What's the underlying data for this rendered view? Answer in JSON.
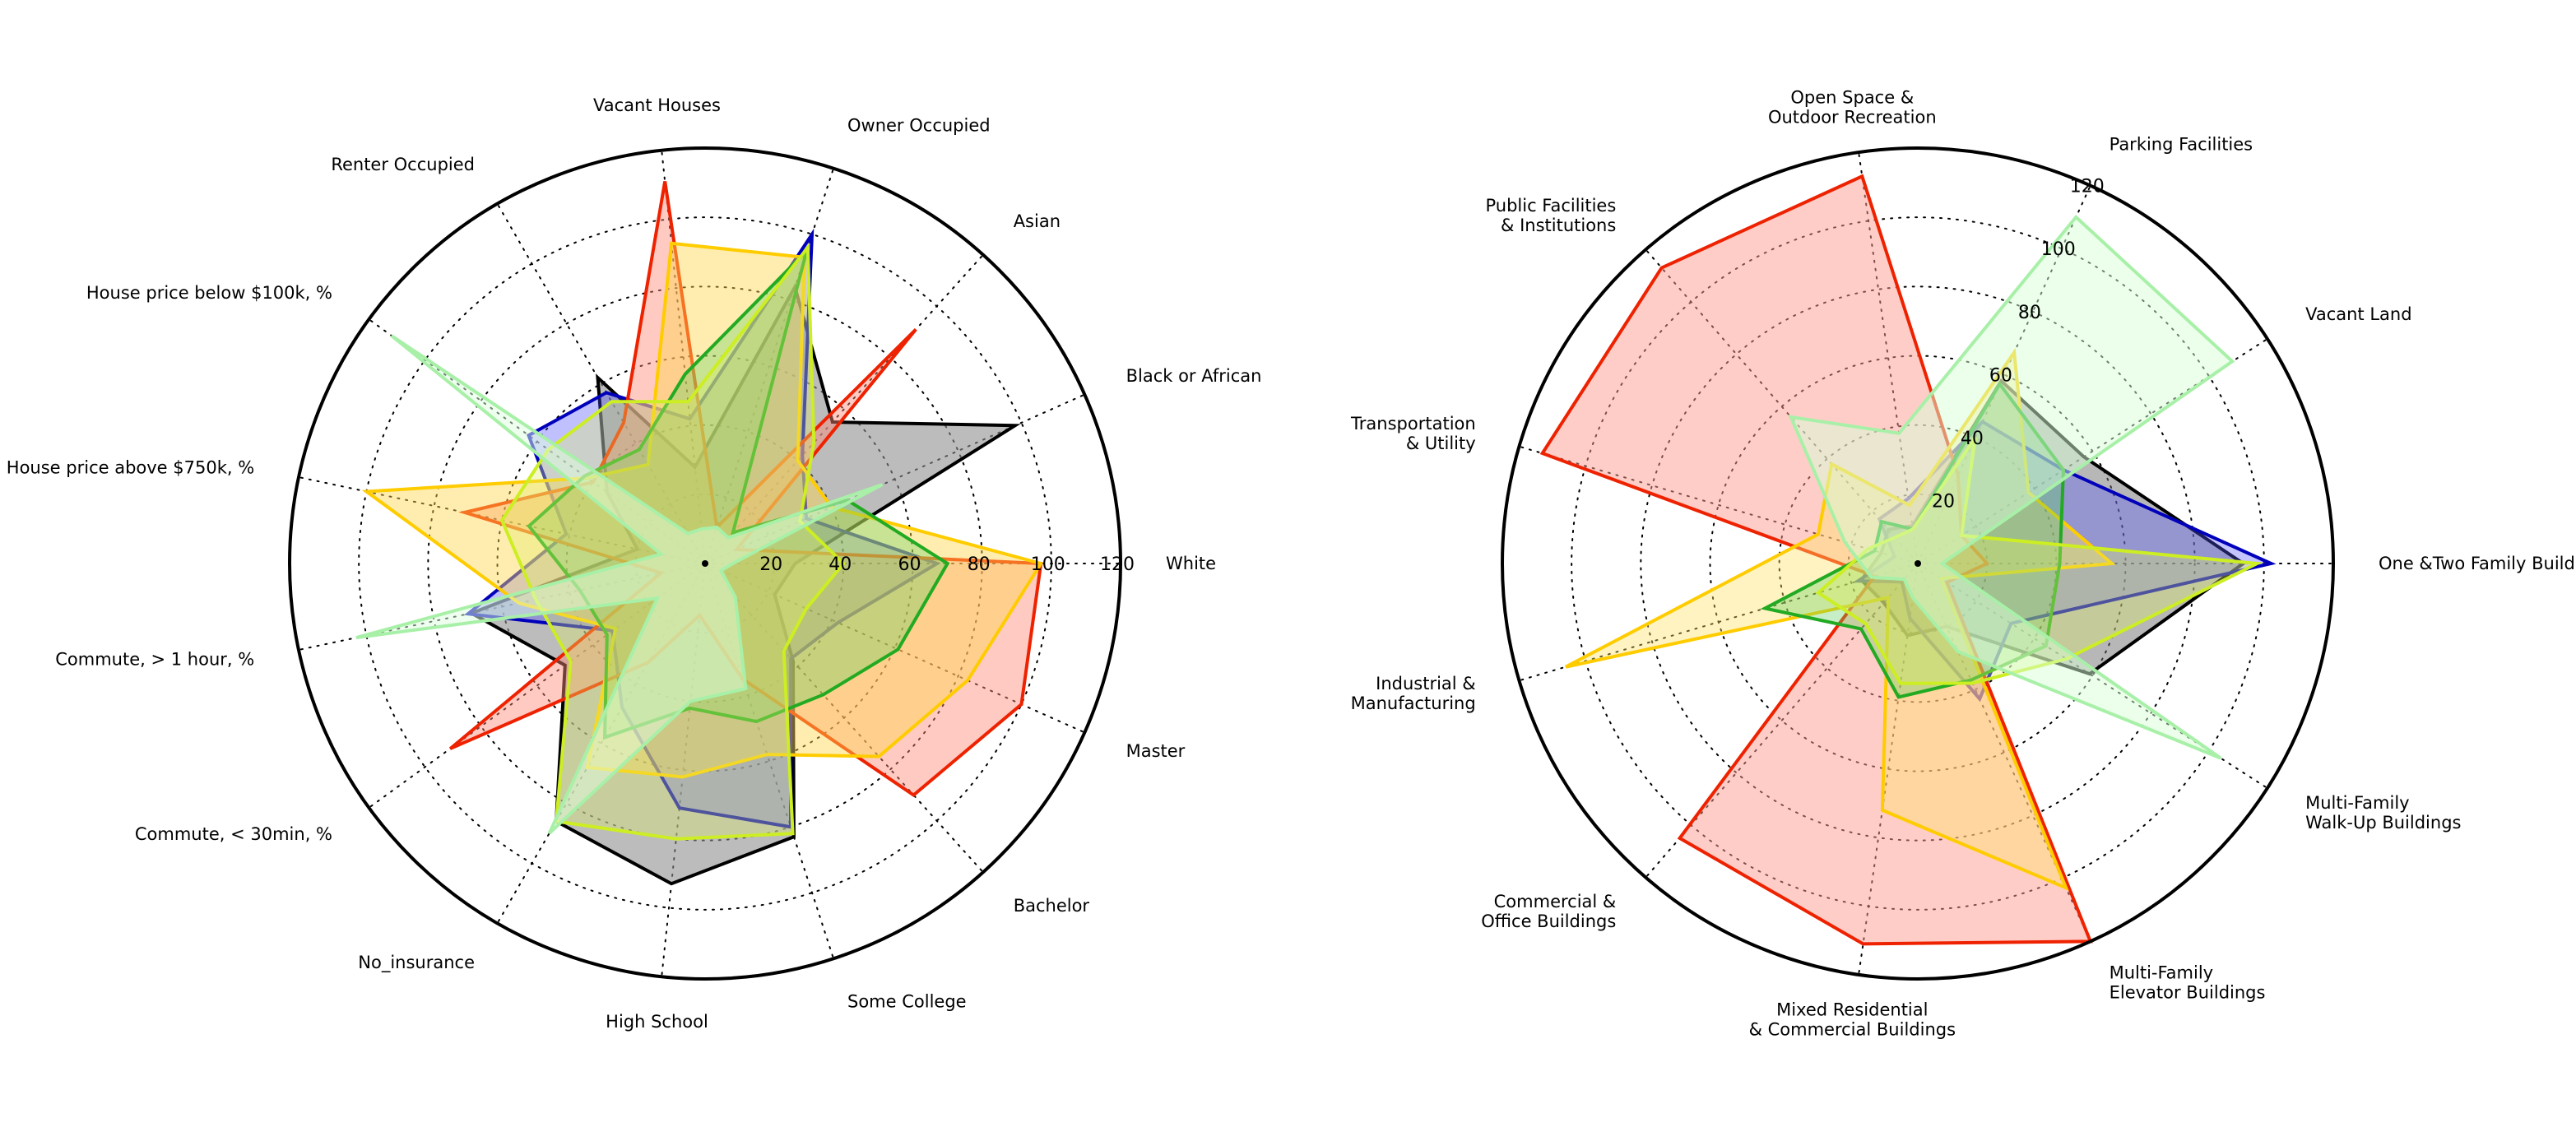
{
  "chart_data": [
    {
      "type": "radar",
      "rmax": 120,
      "rticks": [
        20,
        40,
        60,
        80,
        100,
        120
      ],
      "tick_label_axis": "White",
      "axes": [
        "White",
        "Black or African",
        "Asian",
        "Owner Occupied",
        "Vacant Houses",
        "Renter Occupied",
        "House price below $100k, %",
        "House price above $750k, %",
        "Commute, > 1 hour, %",
        "Commute, < 30min, %",
        "No_insurance",
        "High School",
        "Some College",
        "Bachelor",
        "Master"
      ],
      "series": [
        {
          "name": "black",
          "color": "#000000",
          "fill": "#909090",
          "fill_opacity": 0.6,
          "values": [
            26,
            98,
            55,
            84,
            28,
            62,
            35,
            20,
            69,
            50,
            86,
            93,
            83,
            38,
            22
          ]
        },
        {
          "name": "blue",
          "color": "#0000bb",
          "fill": "#4a4aff",
          "fill_opacity": 0.35,
          "values": [
            67,
            32,
            42,
            100,
            42,
            57,
            63,
            41,
            70,
            33,
            48,
            71,
            80,
            37,
            42
          ]
        },
        {
          "name": "red",
          "color": "#ee2200",
          "fill": "#ff8a78",
          "fill_opacity": 0.45,
          "values": [
            97,
            10,
            91,
            11,
            111,
            47,
            40,
            71,
            13,
            91,
            33,
            15,
            35,
            90,
            100
          ]
        },
        {
          "name": "yellow",
          "color": "#ffcc00",
          "fill": "#ffd84d",
          "fill_opacity": 0.45,
          "values": [
            97,
            40,
            40,
            93,
            93,
            33,
            42,
            100,
            55,
            32,
            68,
            62,
            58,
            75,
            83
          ]
        },
        {
          "name": "green",
          "color": "#22aa22",
          "fill": "#5fd05f",
          "fill_opacity": 0.35,
          "values": [
            70,
            45,
            12,
            95,
            55,
            38,
            43,
            52,
            37,
            35,
            58,
            42,
            48,
            51,
            61
          ]
        },
        {
          "name": "yellow-green",
          "color": "#ccee22",
          "fill": "#dfee66",
          "fill_opacity": 0.35,
          "values": [
            40,
            30,
            47,
            96,
            47,
            54,
            56,
            60,
            50,
            48,
            86,
            80,
            82,
            34,
            32
          ]
        },
        {
          "name": "light-green",
          "color": "#a8f0a8",
          "fill": "#e0ffe0",
          "fill_opacity": 0.5,
          "values": [
            8,
            56,
            10,
            11,
            10,
            10,
            112,
            13,
            103,
            17,
            90,
            40,
            38,
            13,
            5
          ]
        }
      ]
    },
    {
      "type": "radar",
      "rmax": 120,
      "rticks": [
        20,
        40,
        60,
        80,
        100,
        120
      ],
      "tick_label_axis": "Parking Facilities",
      "axes": [
        "One &Two Family Buildings",
        "Vacant Land",
        "Parking Facilities",
        "Open Space &\nOutdoor Recreation",
        "Public Facilities\n& Institutions",
        "Transportation\n& Utility",
        "Industrial &\nManufacturing",
        "Commercial &\nOffice Buildings",
        "Mixed Residential\n& Commercial Buildings",
        "Multi-Family\nElevator Buildings",
        "Multi-Family\nWalk-Up Buildings"
      ],
      "series": [
        {
          "name": "black",
          "color": "#000000",
          "fill": "#707070",
          "fill_opacity": 0.5,
          "values": [
            94,
            57,
            58,
            11,
            13,
            11,
            17,
            15,
            21,
            20,
            59
          ]
        },
        {
          "name": "blue",
          "color": "#0000bb",
          "fill": "#5555ff",
          "fill_opacity": 0.35,
          "values": [
            102,
            50,
            45,
            19,
            17,
            7,
            18,
            7,
            16,
            43,
            32
          ]
        },
        {
          "name": "red",
          "color": "#ee2200",
          "fill": "#ff9c90",
          "fill_opacity": 0.5,
          "values": [
            20,
            15,
            28,
            113,
            113,
            113,
            13,
            105,
            111,
            120,
            10
          ]
        },
        {
          "name": "yellow",
          "color": "#ffcc00",
          "fill": "#ffe066",
          "fill_opacity": 0.4,
          "values": [
            56,
            38,
            67,
            17,
            38,
            30,
            106,
            13,
            72,
            103,
            8
          ]
        },
        {
          "name": "green",
          "color": "#22aa22",
          "fill": "#5fd05f",
          "fill_opacity": 0.35,
          "values": [
            41,
            50,
            57,
            10,
            16,
            13,
            46,
            25,
            39,
            37,
            44
          ]
        },
        {
          "name": "yellow-green",
          "color": "#ccee22",
          "fill": "#dfee66",
          "fill_opacity": 0.35,
          "values": [
            98,
            15,
            40,
            10,
            10,
            15,
            30,
            23,
            35,
            38,
            51
          ]
        },
        {
          "name": "light-green",
          "color": "#a8f0a8",
          "fill": "#d8ffd8",
          "fill_opacity": 0.5,
          "values": [
            7,
            108,
            110,
            38,
            56,
            22,
            14,
            6,
            10,
            28,
            104
          ]
        }
      ]
    }
  ]
}
